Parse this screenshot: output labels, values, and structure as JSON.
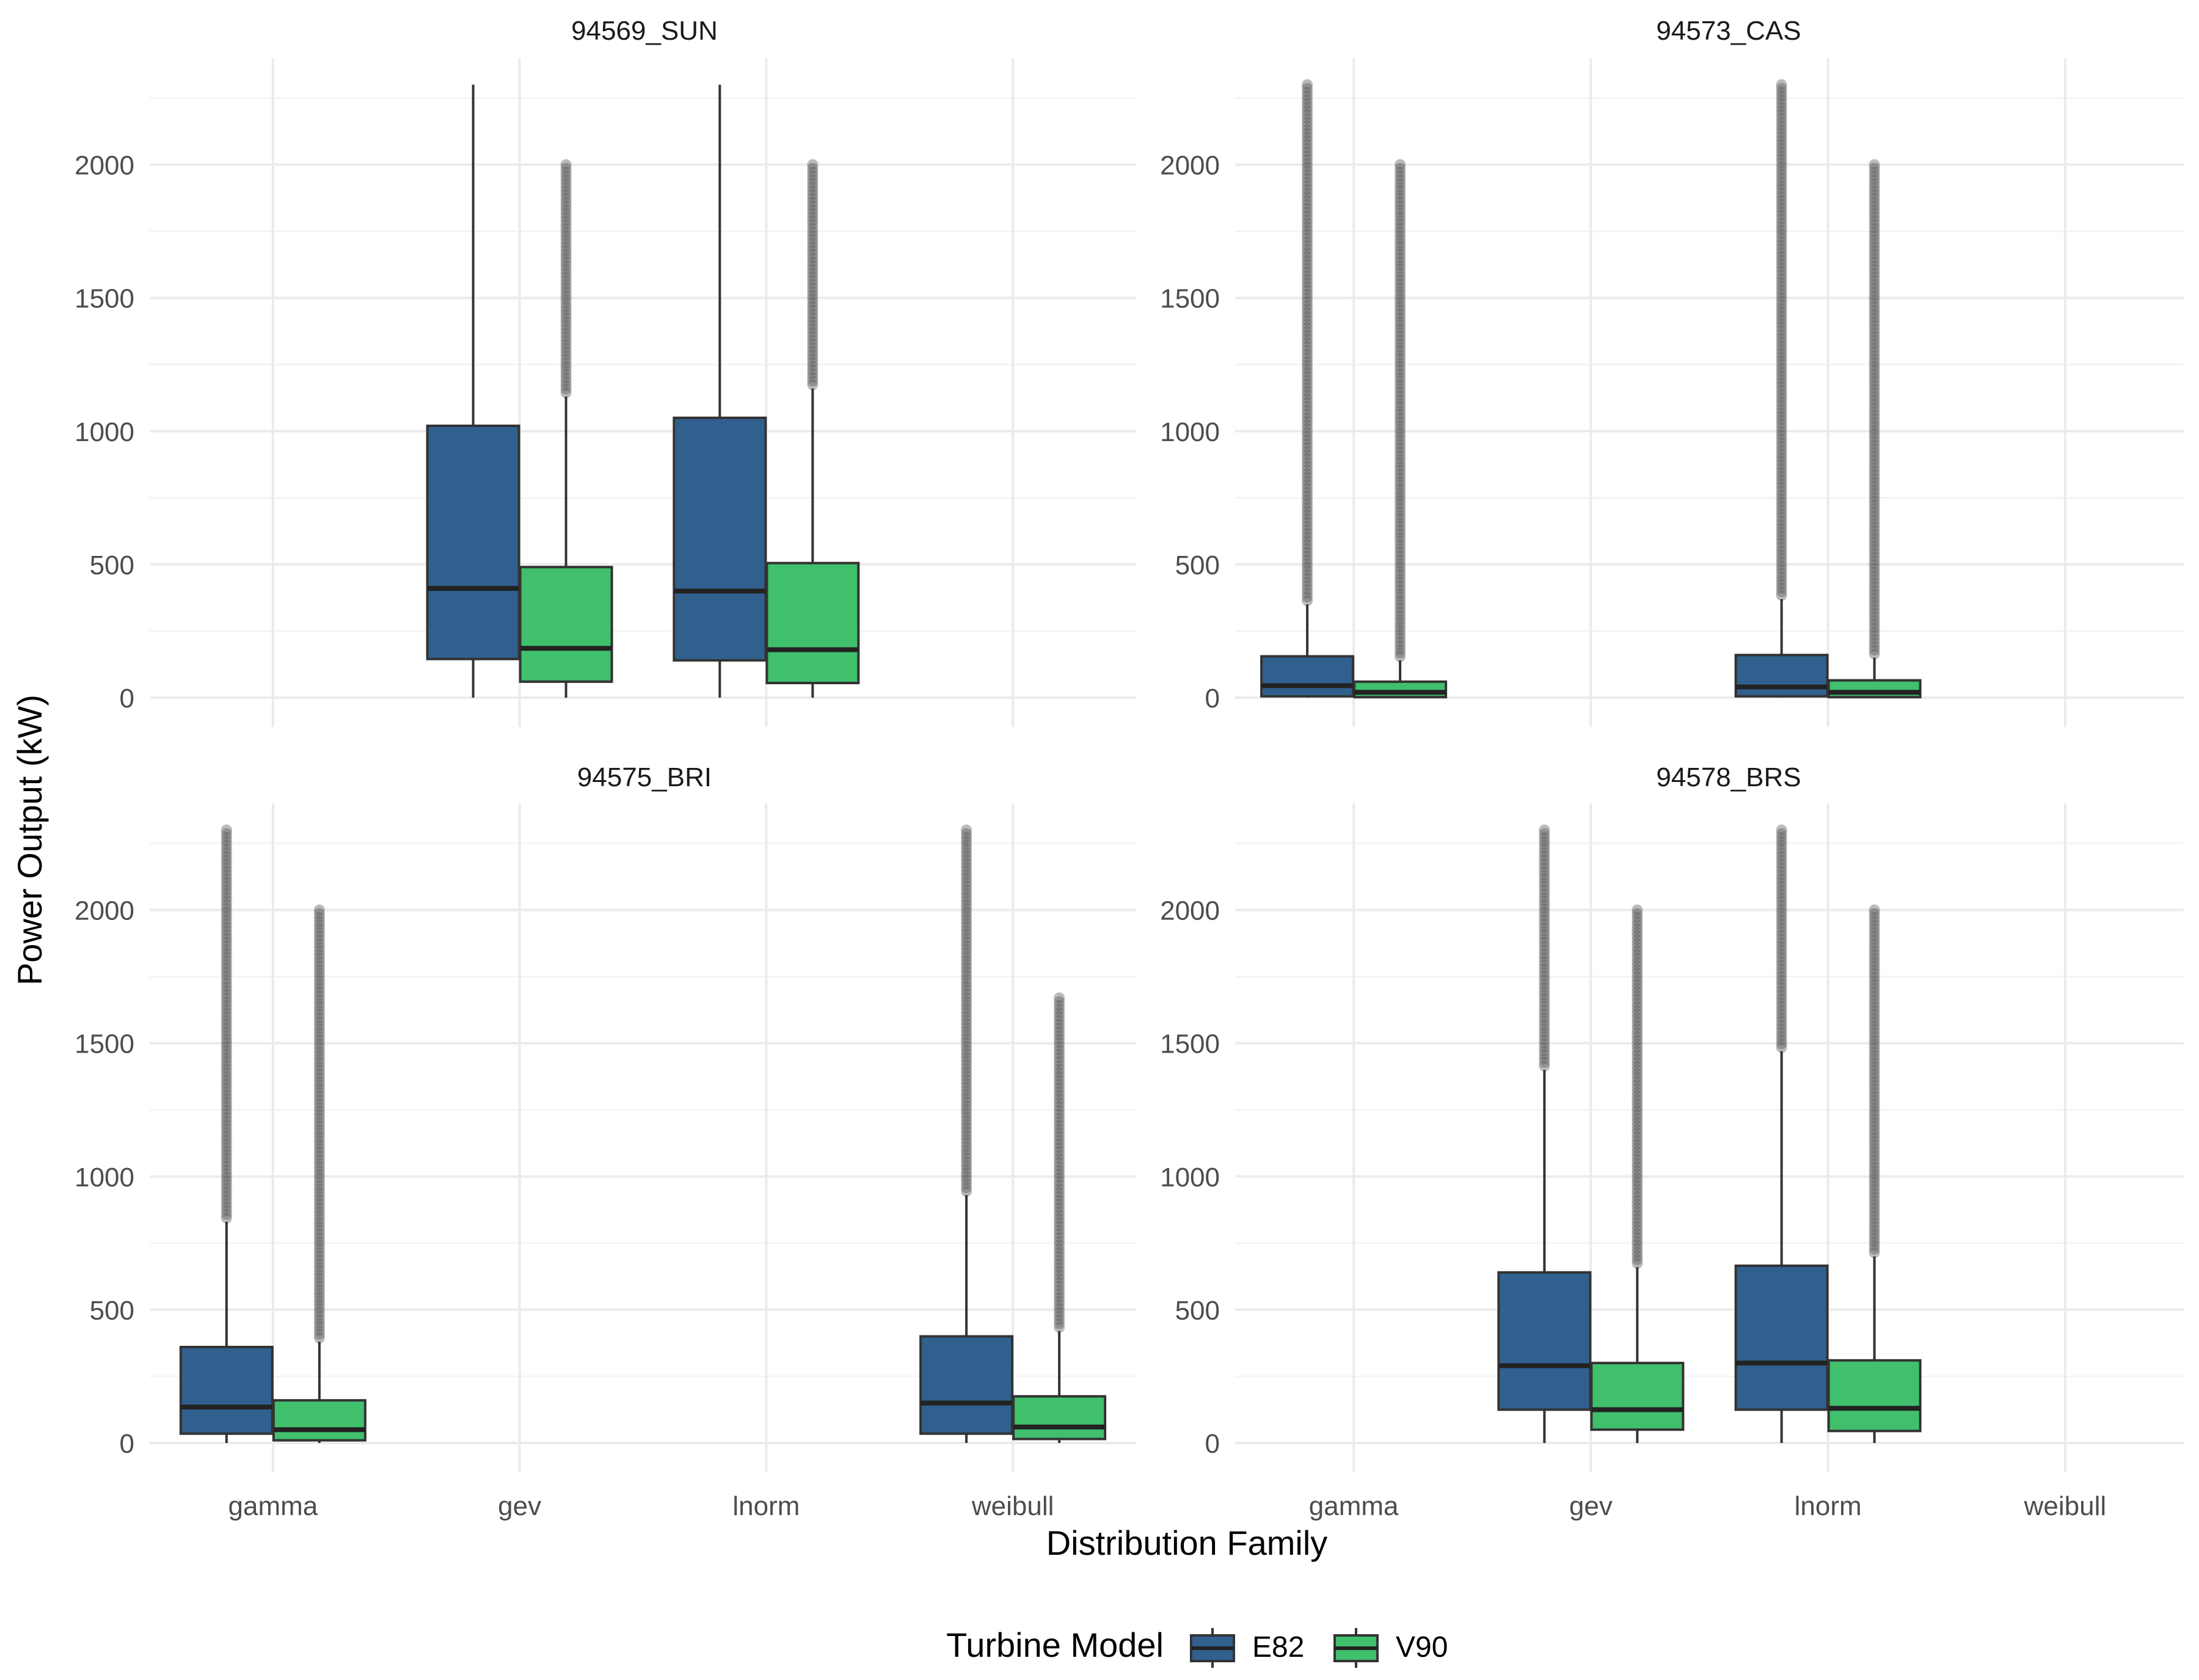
{
  "colors": {
    "E82": "#31608f",
    "V90": "#40bf6d",
    "outlier": "#555555",
    "grid_major": "#ebebeb",
    "grid_minor": "#f4f4f4",
    "text": "#4d4d4d",
    "title": "#000000"
  },
  "chart_data": {
    "type": "boxplot",
    "xlabel": "Distribution Family",
    "ylabel": "Power Output (kW)",
    "categories": [
      "gamma",
      "gev",
      "lnorm",
      "weibull"
    ],
    "y_ticks": [
      "0",
      "500",
      "1000",
      "1500",
      "2000"
    ],
    "ylim": [
      -110,
      2400
    ],
    "legend": {
      "title": "Turbine Model",
      "position": "bottom",
      "entries": [
        "E82",
        "V90"
      ]
    },
    "panels": [
      {
        "title": "94569_SUN",
        "boxes": [
          {
            "category": "gev",
            "series": "E82",
            "min": 0,
            "q1": 145,
            "median": 410,
            "q3": 1020,
            "max": 2300,
            "outliers_from": null,
            "outliers_to": null
          },
          {
            "category": "gev",
            "series": "V90",
            "min": 0,
            "q1": 60,
            "median": 185,
            "q3": 490,
            "max": 1130,
            "outliers_from": 1130,
            "outliers_to": 2000
          },
          {
            "category": "lnorm",
            "series": "E82",
            "min": 0,
            "q1": 140,
            "median": 400,
            "q3": 1050,
            "max": 2300,
            "outliers_from": null,
            "outliers_to": null
          },
          {
            "category": "lnorm",
            "series": "V90",
            "min": 0,
            "q1": 55,
            "median": 180,
            "q3": 505,
            "max": 1160,
            "outliers_from": 1160,
            "outliers_to": 2000
          }
        ]
      },
      {
        "title": "94573_CAS",
        "boxes": [
          {
            "category": "gamma",
            "series": "E82",
            "min": 0,
            "q1": 5,
            "median": 45,
            "q3": 155,
            "max": 350,
            "outliers_from": 350,
            "outliers_to": 2300
          },
          {
            "category": "gamma",
            "series": "V90",
            "min": 0,
            "q1": 2,
            "median": 20,
            "q3": 60,
            "max": 140,
            "outliers_from": 140,
            "outliers_to": 2000
          },
          {
            "category": "lnorm",
            "series": "E82",
            "min": 0,
            "q1": 5,
            "median": 40,
            "q3": 160,
            "max": 370,
            "outliers_from": 370,
            "outliers_to": 2300
          },
          {
            "category": "lnorm",
            "series": "V90",
            "min": 0,
            "q1": 2,
            "median": 20,
            "q3": 65,
            "max": 150,
            "outliers_from": 150,
            "outliers_to": 2000
          }
        ]
      },
      {
        "title": "94575_BRI",
        "boxes": [
          {
            "category": "gamma",
            "series": "E82",
            "min": 0,
            "q1": 35,
            "median": 135,
            "q3": 360,
            "max": 830,
            "outliers_from": 830,
            "outliers_to": 2300
          },
          {
            "category": "gamma",
            "series": "V90",
            "min": 0,
            "q1": 10,
            "median": 50,
            "q3": 160,
            "max": 380,
            "outliers_from": 380,
            "outliers_to": 2000
          },
          {
            "category": "weibull",
            "series": "E82",
            "min": 0,
            "q1": 35,
            "median": 150,
            "q3": 400,
            "max": 930,
            "outliers_from": 930,
            "outliers_to": 2300
          },
          {
            "category": "weibull",
            "series": "V90",
            "min": 0,
            "q1": 15,
            "median": 60,
            "q3": 175,
            "max": 420,
            "outliers_from": 420,
            "outliers_to": 1670
          }
        ]
      },
      {
        "title": "94578_BRS",
        "boxes": [
          {
            "category": "gev",
            "series": "E82",
            "min": 0,
            "q1": 125,
            "median": 290,
            "q3": 640,
            "max": 1400,
            "outliers_from": 1400,
            "outliers_to": 2300
          },
          {
            "category": "gev",
            "series": "V90",
            "min": 0,
            "q1": 50,
            "median": 125,
            "q3": 300,
            "max": 660,
            "outliers_from": 660,
            "outliers_to": 2000
          },
          {
            "category": "lnorm",
            "series": "E82",
            "min": 0,
            "q1": 125,
            "median": 300,
            "q3": 665,
            "max": 1470,
            "outliers_from": 1470,
            "outliers_to": 2300
          },
          {
            "category": "lnorm",
            "series": "V90",
            "min": 0,
            "q1": 45,
            "median": 130,
            "q3": 310,
            "max": 700,
            "outliers_from": 700,
            "outliers_to": 2000
          }
        ]
      }
    ]
  }
}
